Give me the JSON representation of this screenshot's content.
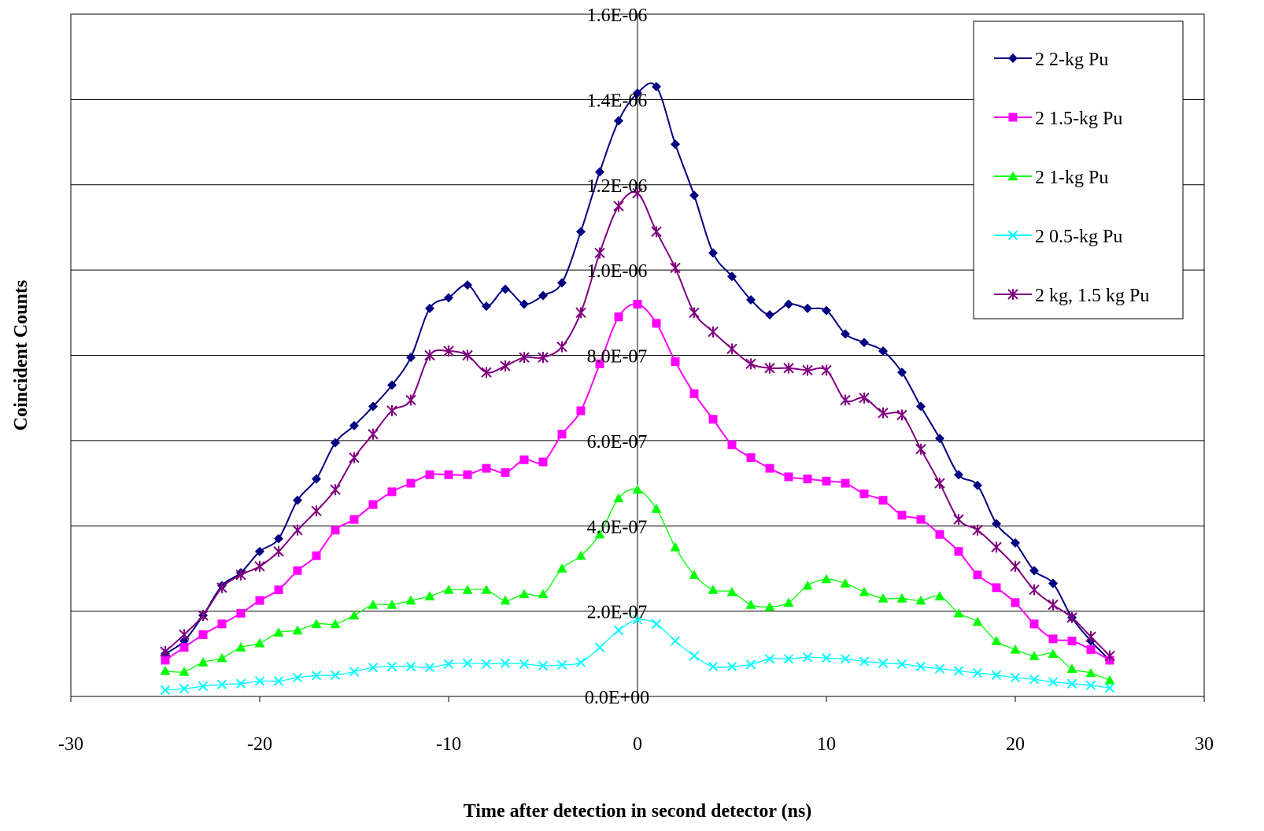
{
  "chart_data": {
    "type": "line",
    "title": "",
    "xlabel": "Time after detection in second detector (ns)",
    "ylabel": "Coincident Counts",
    "xlim": [
      -30,
      30
    ],
    "ylim": [
      0,
      1.6e-06
    ],
    "x_ticks": [
      -30,
      -20,
      -10,
      0,
      10,
      20,
      30
    ],
    "x_tick_labels": [
      "-30",
      "-20",
      "-10",
      "0",
      "10",
      "20",
      "30"
    ],
    "y_ticks": [
      0,
      2e-07,
      4e-07,
      6e-07,
      8e-07,
      1e-06,
      1.2e-06,
      1.4e-06,
      1.6e-06
    ],
    "y_tick_labels": [
      "0.0E+00",
      "2.0E-07",
      "4.0E-07",
      "6.0E-07",
      "8.0E-07",
      "1.0E-06",
      "1.2E-06",
      "1.4E-06",
      "1.6E-06"
    ],
    "grid": "horizontal",
    "legend_position": "top-right",
    "x": [
      -25,
      -24,
      -23,
      -22,
      -21,
      -20,
      -19,
      -18,
      -17,
      -16,
      -15,
      -14,
      -13,
      -12,
      -11,
      -10,
      -9,
      -8,
      -7,
      -6,
      -5,
      -4,
      -3,
      -2,
      -1,
      0,
      1,
      2,
      3,
      4,
      5,
      6,
      7,
      8,
      9,
      10,
      11,
      12,
      13,
      14,
      15,
      16,
      17,
      18,
      19,
      20,
      21,
      22,
      23,
      24,
      25
    ],
    "series": [
      {
        "name": "2 2-kg Pu",
        "color": "#000080",
        "marker": "diamond",
        "values": [
          1e-07,
          1.3e-07,
          1.9e-07,
          2.6e-07,
          2.9e-07,
          3.4e-07,
          3.7e-07,
          4.6e-07,
          5.1e-07,
          5.95e-07,
          6.35e-07,
          6.8e-07,
          7.3e-07,
          7.95e-07,
          9.1e-07,
          9.35e-07,
          9.65e-07,
          9.15e-07,
          9.55e-07,
          9.2e-07,
          9.4e-07,
          9.7e-07,
          1.09e-06,
          1.23e-06,
          1.35e-06,
          1.415e-06,
          1.43e-06,
          1.295e-06,
          1.175e-06,
          1.04e-06,
          9.85e-07,
          9.3e-07,
          8.95e-07,
          9.2e-07,
          9.1e-07,
          9.05e-07,
          8.5e-07,
          8.3e-07,
          8.1e-07,
          7.6e-07,
          6.8e-07,
          6.05e-07,
          5.2e-07,
          4.95e-07,
          4.05e-07,
          3.6e-07,
          2.95e-07,
          2.65e-07,
          1.85e-07,
          1.3e-07,
          8.5e-08
        ]
      },
      {
        "name": "2 1.5-kg Pu",
        "color": "#FF00FF",
        "marker": "square",
        "values": [
          8.5e-08,
          1.15e-07,
          1.45e-07,
          1.7e-07,
          1.95e-07,
          2.25e-07,
          2.5e-07,
          2.95e-07,
          3.3e-07,
          3.9e-07,
          4.15e-07,
          4.5e-07,
          4.8e-07,
          5e-07,
          5.2e-07,
          5.2e-07,
          5.2e-07,
          5.35e-07,
          5.25e-07,
          5.55e-07,
          5.5e-07,
          6.15e-07,
          6.7e-07,
          7.8e-07,
          8.9e-07,
          9.2e-07,
          8.75e-07,
          7.85e-07,
          7.1e-07,
          6.5e-07,
          5.9e-07,
          5.6e-07,
          5.35e-07,
          5.15e-07,
          5.1e-07,
          5.05e-07,
          5e-07,
          4.75e-07,
          4.6e-07,
          4.25e-07,
          4.15e-07,
          3.8e-07,
          3.4e-07,
          2.85e-07,
          2.55e-07,
          2.2e-07,
          1.7e-07,
          1.35e-07,
          1.3e-07,
          1.1e-07,
          8.5e-08
        ]
      },
      {
        "name": "2 1-kg Pu",
        "color": "#00FF00",
        "marker": "triangle",
        "values": [
          6e-08,
          5.8e-08,
          8e-08,
          9e-08,
          1.15e-07,
          1.25e-07,
          1.5e-07,
          1.55e-07,
          1.7e-07,
          1.7e-07,
          1.9e-07,
          2.15e-07,
          2.15e-07,
          2.25e-07,
          2.35e-07,
          2.5e-07,
          2.5e-07,
          2.5e-07,
          2.25e-07,
          2.4e-07,
          2.4e-07,
          3e-07,
          3.3e-07,
          3.8e-07,
          4.65e-07,
          4.85e-07,
          4.4e-07,
          3.5e-07,
          2.85e-07,
          2.5e-07,
          2.45e-07,
          2.15e-07,
          2.1e-07,
          2.2e-07,
          2.6e-07,
          2.75e-07,
          2.65e-07,
          2.45e-07,
          2.3e-07,
          2.3e-07,
          2.25e-07,
          2.35e-07,
          1.95e-07,
          1.75e-07,
          1.3e-07,
          1.1e-07,
          9.5e-08,
          1e-07,
          6.5e-08,
          5.5e-08,
          3.8e-08
        ]
      },
      {
        "name": "2 0.5-kg Pu",
        "color": "#00FFFF",
        "marker": "x",
        "values": [
          1.5e-08,
          1.8e-08,
          2.4e-08,
          2.8e-08,
          3e-08,
          3.6e-08,
          3.6e-08,
          4.4e-08,
          4.9e-08,
          5e-08,
          5.8e-08,
          6.8e-08,
          7e-08,
          7e-08,
          6.8e-08,
          7.6e-08,
          7.8e-08,
          7.6e-08,
          7.8e-08,
          7.6e-08,
          7.2e-08,
          7.4e-08,
          8e-08,
          1.15e-07,
          1.55e-07,
          1.8e-07,
          1.7e-07,
          1.3e-07,
          9.5e-08,
          7e-08,
          7e-08,
          7.5e-08,
          8.8e-08,
          8.8e-08,
          9.2e-08,
          9e-08,
          8.8e-08,
          8.2e-08,
          7.8e-08,
          7.6e-08,
          7e-08,
          6.5e-08,
          6e-08,
          5.5e-08,
          5e-08,
          4.4e-08,
          4e-08,
          3.4e-08,
          3e-08,
          2.6e-08,
          2e-08
        ]
      },
      {
        "name": "2 kg, 1.5 kg Pu",
        "color": "#800080",
        "marker": "asterisk",
        "values": [
          1.05e-07,
          1.45e-07,
          1.9e-07,
          2.55e-07,
          2.85e-07,
          3.05e-07,
          3.4e-07,
          3.9e-07,
          4.35e-07,
          4.85e-07,
          5.6e-07,
          6.15e-07,
          6.7e-07,
          6.95e-07,
          8e-07,
          8.1e-07,
          8e-07,
          7.6e-07,
          7.75e-07,
          7.95e-07,
          7.95e-07,
          8.2e-07,
          9e-07,
          1.04e-06,
          1.15e-06,
          1.18e-06,
          1.09e-06,
          1.005e-06,
          9e-07,
          8.55e-07,
          8.15e-07,
          7.8e-07,
          7.7e-07,
          7.7e-07,
          7.65e-07,
          7.65e-07,
          6.95e-07,
          7e-07,
          6.65e-07,
          6.6e-07,
          5.8e-07,
          5e-07,
          4.15e-07,
          3.9e-07,
          3.5e-07,
          3.05e-07,
          2.5e-07,
          2.15e-07,
          1.85e-07,
          1.4e-07,
          9.5e-08
        ]
      }
    ]
  }
}
